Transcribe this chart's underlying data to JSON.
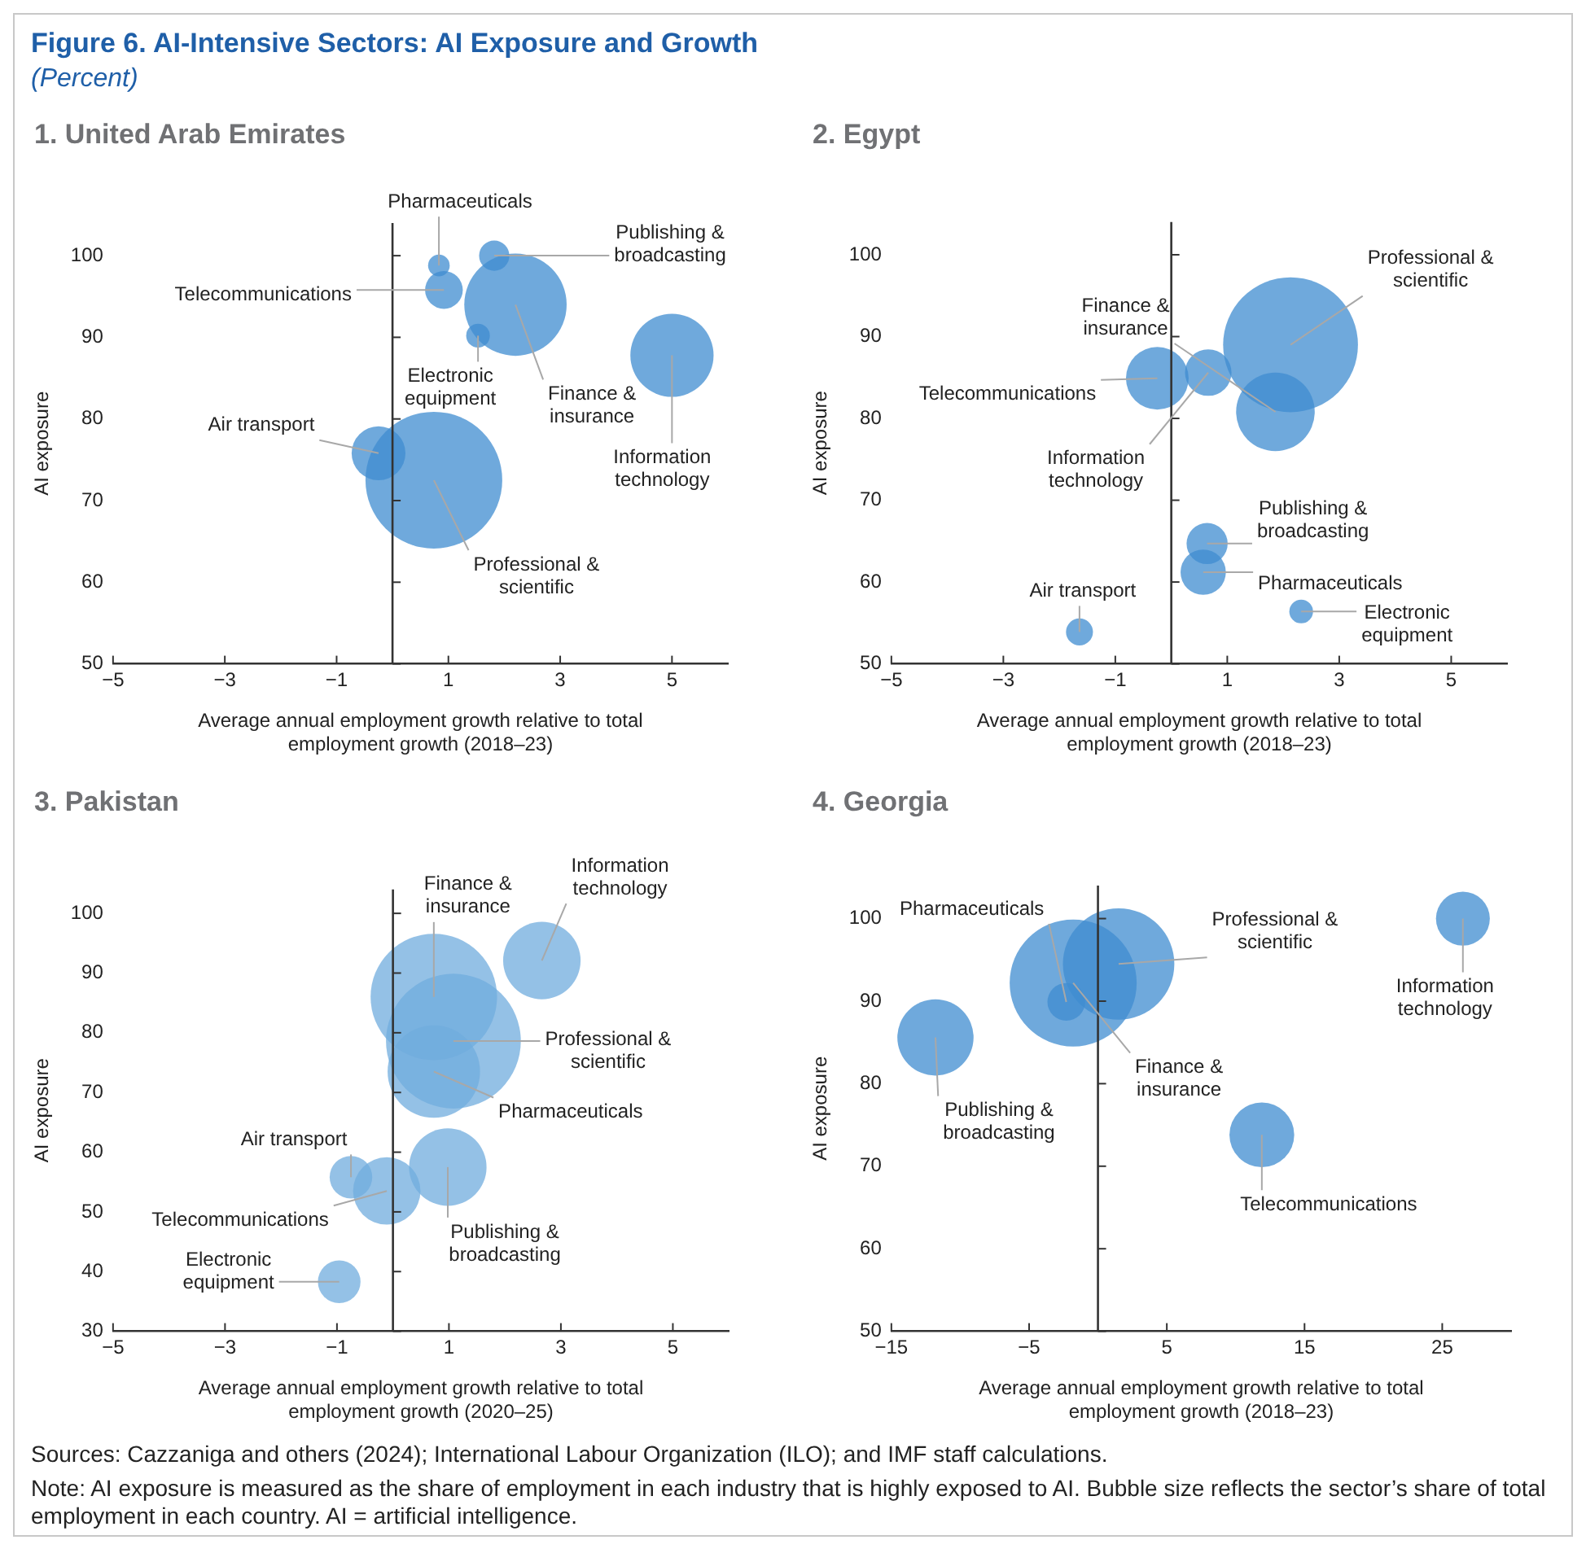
{
  "chart_data": [
    {
      "type": "bubble",
      "title": "1. United Arab Emirates",
      "xlabel": "Average annual employment growth relative to total employment growth (2018–23)",
      "ylabel": "AI exposure",
      "xlim": [
        -5,
        6
      ],
      "xticks": [
        {
          "value": -5,
          "label": "−5"
        },
        {
          "value": -3,
          "label": "−3"
        },
        {
          "value": -1,
          "label": "−1"
        },
        1,
        3,
        5
      ],
      "ylim": [
        50,
        104
      ],
      "yticks": [
        50,
        60,
        70,
        80,
        90,
        100
      ],
      "annotations": [
        "Figure 6. AI-Intensive Sectors: AI Exposure and Growth",
        "(Percent)"
      ],
      "series": [
        {
          "name": "Pharmaceuticals",
          "color": "#6fa9dc",
          "x": [
            0.83
          ],
          "values": [
            98.8
          ],
          "sizes": [
            0.025
          ]
        },
        {
          "name": "Publishing & broadcasting",
          "color": "#6fa9dc",
          "x": [
            1.82
          ],
          "values": [
            100
          ],
          "sizes": [
            0.049
          ]
        },
        {
          "name": "Telecommunications",
          "color": "#6fa9dc",
          "x": [
            0.92
          ],
          "values": [
            95.8
          ],
          "sizes": [
            0.076
          ]
        },
        {
          "name": "Finance & insurance",
          "color": "#6fa9dc",
          "x": [
            2.2
          ],
          "values": [
            94
          ],
          "sizes": [
            0.56
          ]
        },
        {
          "name": "Electronic equipment",
          "color": "#6fa9dc",
          "x": [
            1.53
          ],
          "values": [
            90.2
          ],
          "sizes": [
            0.03
          ]
        },
        {
          "name": "Information technology",
          "color": "#6fa9dc",
          "x": [
            5
          ],
          "values": [
            87.8
          ],
          "sizes": [
            0.37
          ]
        },
        {
          "name": "Air transport",
          "color": "#6fa9dc",
          "x": [
            -0.25
          ],
          "values": [
            75.8
          ],
          "sizes": [
            0.155
          ]
        },
        {
          "name": "Professional & scientific",
          "color": "#6fa9dc",
          "x": [
            0.74
          ],
          "values": [
            72.5
          ],
          "sizes": [
            1
          ]
        }
      ]
    },
    {
      "type": "bubble",
      "title": "2. Egypt",
      "xlabel": "Average annual employment growth relative to total employment growth (2018–23)",
      "ylabel": "AI exposure",
      "xlim": [
        -5,
        6
      ],
      "xticks": [
        {
          "value": -5,
          "label": "−5"
        },
        {
          "value": -3,
          "label": "−3"
        },
        {
          "value": -1,
          "label": "−1"
        },
        1,
        3,
        5
      ],
      "ylim": [
        50,
        104
      ],
      "yticks": [
        50,
        60,
        70,
        80,
        90,
        100
      ],
      "series": [
        {
          "name": "Pharmaceuticals",
          "color": "#6fa9dc",
          "x": [
            0.57
          ],
          "values": [
            61.2
          ],
          "sizes": [
            0.113
          ]
        },
        {
          "name": "Publishing & broadcasting",
          "color": "#6fa9dc",
          "x": [
            0.64
          ],
          "values": [
            64.7
          ],
          "sizes": [
            0.093
          ]
        },
        {
          "name": "Telecommunications",
          "color": "#6fa9dc",
          "x": [
            -0.25
          ],
          "values": [
            84.9
          ],
          "sizes": [
            0.216
          ]
        },
        {
          "name": "Finance & insurance",
          "color": "#6fa9dc",
          "x": [
            1.86
          ],
          "values": [
            80.8
          ],
          "sizes": [
            0.34
          ]
        },
        {
          "name": "Electronic equipment",
          "color": "#6fa9dc",
          "x": [
            2.32
          ],
          "values": [
            56.4
          ],
          "sizes": [
            0.031
          ]
        },
        {
          "name": "Information technology",
          "color": "#6fa9dc",
          "x": [
            0.66
          ],
          "values": [
            85.6
          ],
          "sizes": [
            0.119
          ]
        },
        {
          "name": "Air transport",
          "color": "#6fa9dc",
          "x": [
            -1.64
          ],
          "values": [
            53.9
          ],
          "sizes": [
            0.04
          ]
        },
        {
          "name": "Professional & scientific",
          "color": "#6fa9dc",
          "x": [
            2.13
          ],
          "values": [
            89
          ],
          "sizes": [
            1
          ]
        }
      ]
    },
    {
      "type": "bubble",
      "title": "3. Pakistan",
      "xlabel": "Average annual employment growth relative to total employment growth (2020–25)",
      "ylabel": "AI exposure",
      "xlim": [
        -5,
        6
      ],
      "xticks": [
        {
          "value": -5,
          "label": "−5"
        },
        {
          "value": -3,
          "label": "−3"
        },
        {
          "value": -1,
          "label": "−1"
        },
        1,
        3,
        5
      ],
      "ylim": [
        30,
        104
      ],
      "yticks": [
        30,
        40,
        50,
        60,
        70,
        80,
        90,
        100
      ],
      "series": [
        {
          "name": "Pharmaceuticals",
          "color": "#94c1e6",
          "x": [
            0.73
          ],
          "values": [
            73.5
          ],
          "sizes": [
            0.47
          ]
        },
        {
          "name": "Publishing & broadcasting",
          "color": "#94c1e6",
          "x": [
            0.98
          ],
          "values": [
            57.5
          ],
          "sizes": [
            0.33
          ]
        },
        {
          "name": "Telecommunications",
          "color": "#94c1e6",
          "x": [
            -0.11
          ],
          "values": [
            53.5
          ],
          "sizes": [
            0.25
          ]
        },
        {
          "name": "Finance & insurance",
          "color": "#94c1e6",
          "x": [
            0.73
          ],
          "values": [
            86
          ],
          "sizes": [
            0.88
          ]
        },
        {
          "name": "Electronic equipment",
          "color": "#94c1e6",
          "x": [
            -0.96
          ],
          "values": [
            38.3
          ],
          "sizes": [
            0.1
          ]
        },
        {
          "name": "Information technology",
          "color": "#94c1e6",
          "x": [
            2.66
          ],
          "values": [
            92.1
          ],
          "sizes": [
            0.33
          ]
        },
        {
          "name": "Air transport",
          "color": "#94c1e6",
          "x": [
            -0.75
          ],
          "values": [
            55.8
          ],
          "sizes": [
            0.1
          ]
        },
        {
          "name": "Professional & scientific",
          "color": "#94c1e6",
          "x": [
            1.08
          ],
          "values": [
            78.6
          ],
          "sizes": [
            1
          ]
        }
      ]
    },
    {
      "type": "bubble",
      "title": "4. Georgia",
      "xlabel": "Average annual employment growth relative to total employment growth (2018–23)",
      "ylabel": "AI exposure",
      "xlim": [
        -15,
        30
      ],
      "xticks": [
        {
          "value": -15,
          "label": "−15"
        },
        {
          "value": -5,
          "label": "−5"
        },
        5,
        15,
        25
      ],
      "ylim": [
        50,
        104
      ],
      "yticks": [
        50,
        60,
        70,
        80,
        90,
        100
      ],
      "annotations": [
        "Sources: Cazzaniga and others (2024); International Labour Organization (ILO); and IMF staff calculations.",
        "Note: AI exposure is measured as the share of employment in each industry that is highly exposed to AI. Bubble size reflects the sector’s share of total employment in each country. AI = artificial intelligence."
      ],
      "series": [
        {
          "name": "Pharmaceuticals",
          "color": "#6fa9dc",
          "x": [
            -2.3
          ],
          "values": [
            89.9
          ],
          "sizes": [
            0.088
          ]
        },
        {
          "name": "Publishing & broadcasting",
          "color": "#6fa9dc",
          "x": [
            -11.8
          ],
          "values": [
            85.6
          ],
          "sizes": [
            0.36
          ]
        },
        {
          "name": "Telecommunications",
          "color": "#6fa9dc",
          "x": [
            11.9
          ],
          "values": [
            73.8
          ],
          "sizes": [
            0.26
          ]
        },
        {
          "name": "Finance & insurance",
          "color": "#6fa9dc",
          "x": [
            -1.8
          ],
          "values": [
            92.2
          ],
          "sizes": [
            1
          ]
        },
        {
          "name": "Information technology",
          "color": "#6fa9dc",
          "x": [
            26.5
          ],
          "values": [
            100
          ],
          "sizes": [
            0.18
          ]
        },
        {
          "name": "Professional & scientific",
          "color": "#6fa9dc",
          "x": [
            1.5
          ],
          "values": [
            94.5
          ],
          "sizes": [
            0.77
          ]
        }
      ]
    }
  ]
}
